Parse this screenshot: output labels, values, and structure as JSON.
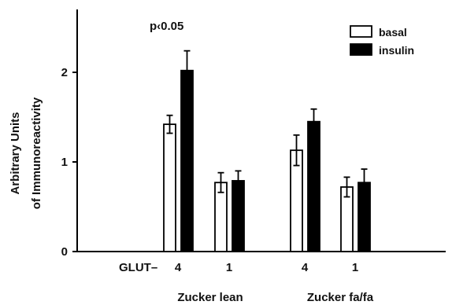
{
  "chart_data": {
    "type": "bar",
    "ylabel_line1": "Arbitrary Units",
    "ylabel_line2": "of Immunoreactivity",
    "ylim": [
      0,
      2.5
    ],
    "yticks": [
      0,
      1,
      2
    ],
    "ytick_labels": [
      "0",
      "1",
      "2"
    ],
    "x_row_label": "GLUT–",
    "categories": [
      "4",
      "1",
      "4",
      "1"
    ],
    "groups": [
      "Zucker lean",
      "Zucker fa/fa"
    ],
    "annotation": "p‹0.05",
    "legend_position": "top-right",
    "series": [
      {
        "name": "basal",
        "color": "#ffffff",
        "values": [
          1.42,
          0.77,
          1.13,
          0.72
        ],
        "errors": [
          0.1,
          0.11,
          0.17,
          0.11
        ]
      },
      {
        "name": "insulin",
        "color": "#000000",
        "values": [
          2.02,
          0.79,
          1.45,
          0.77
        ],
        "errors": [
          0.22,
          0.11,
          0.14,
          0.15
        ]
      }
    ]
  }
}
